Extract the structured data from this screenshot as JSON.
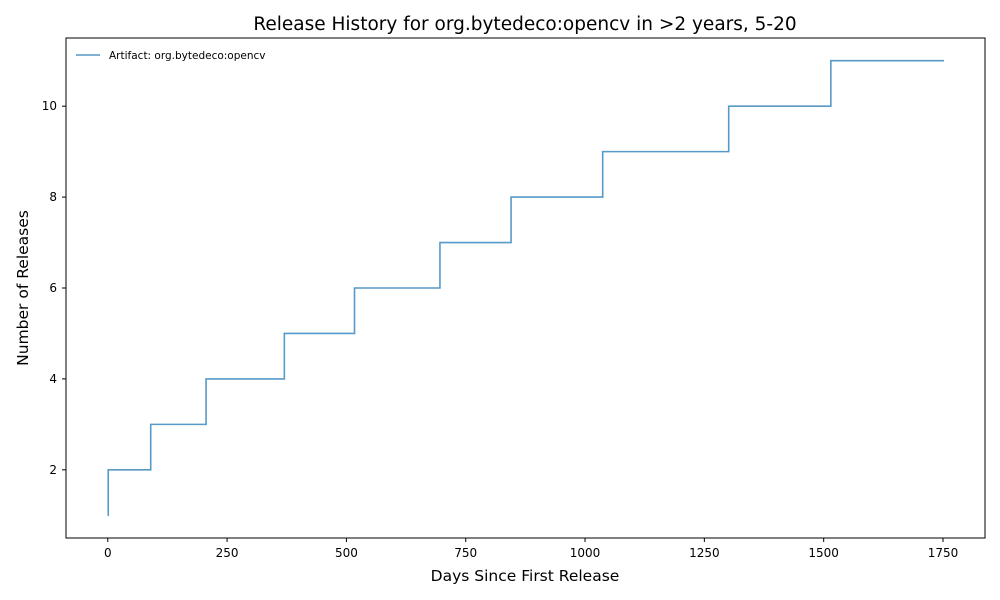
{
  "chart_data": {
    "type": "line",
    "step": "post",
    "title": "Release History for org.bytedeco:opencv in >2 years, 5-20",
    "xlabel": "Days Since First Release",
    "ylabel": "Number of Releases",
    "xlim": [
      -87.5,
      1838
    ],
    "ylim": [
      0.5,
      11.5
    ],
    "x_ticks": [
      0,
      250,
      500,
      750,
      1000,
      1250,
      1500,
      1750
    ],
    "y_ticks": [
      2,
      4,
      6,
      8,
      10
    ],
    "grid": false,
    "legend_position": "top-left",
    "series": [
      {
        "name": "Artifact: org.bytedeco:opencv",
        "color": "#1f77b4",
        "x": [
          0,
          1,
          90,
          206,
          370,
          517,
          696,
          845,
          1037,
          1301,
          1515,
          1752
        ],
        "y": [
          1,
          2,
          3,
          4,
          5,
          6,
          7,
          8,
          9,
          10,
          11,
          11
        ]
      }
    ]
  }
}
